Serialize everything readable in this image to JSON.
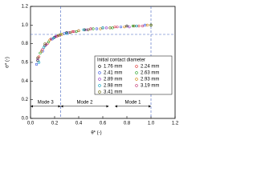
{
  "chart_data": {
    "type": "scatter",
    "x_label": "θ* (-)",
    "y_label": "σ* (-)",
    "xlim": [
      0,
      1.2
    ],
    "ylim": [
      0,
      1.2
    ],
    "xticks": [
      {
        "value": 0,
        "label": "0.0"
      },
      0.2,
      0.4,
      0.6,
      0.8,
      {
        "value": 1,
        "label": "1.0"
      },
      1.2
    ],
    "yticks": [
      {
        "value": 0,
        "label": "0.0"
      },
      0.2,
      0.4,
      0.6,
      0.8,
      {
        "value": 1,
        "label": "1.0"
      },
      1.2
    ],
    "legend_title": "Initial contact diameter",
    "legend_position": "lower right",
    "reference_lines": {
      "horizontal": [
        0.9
      ],
      "vertical": [
        0.25,
        1
      ]
    },
    "modes": [
      {
        "label": "Mode 3",
        "range": [
          0,
          0.25
        ]
      },
      {
        "label": "Mode 2",
        "range": [
          0.25,
          0.65
        ]
      },
      {
        "label": "Mode 1",
        "range": [
          0.7,
          1
        ]
      }
    ],
    "series": [
      {
        "name": "1.76 mm",
        "color": "#000000",
        "x": [
          0.06,
          0.12,
          0.2,
          0.3,
          0.45,
          0.6,
          0.8,
          1.0
        ],
        "values": [
          0.62,
          0.78,
          0.87,
          0.92,
          0.95,
          0.97,
          0.99,
          1.0
        ]
      },
      {
        "name": "2.24 mm",
        "color": "#e03030",
        "x": [
          0.07,
          0.14,
          0.22,
          0.35,
          0.5,
          0.7,
          0.9
        ],
        "values": [
          0.66,
          0.8,
          0.88,
          0.93,
          0.96,
          0.98,
          0.99
        ]
      },
      {
        "name": "2.41 mm",
        "color": "#3050e0",
        "x": [
          0.05,
          0.1,
          0.18,
          0.28,
          0.4,
          0.55,
          0.75,
          0.95
        ],
        "values": [
          0.58,
          0.72,
          0.85,
          0.91,
          0.94,
          0.96,
          0.98,
          1.0
        ]
      },
      {
        "name": "2.63 mm",
        "color": "#20a020",
        "x": [
          0.08,
          0.15,
          0.25,
          0.38,
          0.52,
          0.68,
          0.85,
          1.0
        ],
        "values": [
          0.7,
          0.82,
          0.9,
          0.93,
          0.96,
          0.97,
          0.99,
          1.0
        ]
      },
      {
        "name": "2.89 mm",
        "color": "#9030c0",
        "x": [
          0.06,
          0.13,
          0.21,
          0.32,
          0.47,
          0.63,
          0.82
        ],
        "values": [
          0.64,
          0.79,
          0.88,
          0.92,
          0.95,
          0.97,
          0.98
        ]
      },
      {
        "name": "2.93 mm",
        "color": "#d08000",
        "x": [
          0.09,
          0.16,
          0.26,
          0.4,
          0.58,
          0.78,
          0.97
        ],
        "values": [
          0.72,
          0.84,
          0.9,
          0.94,
          0.96,
          0.98,
          1.0
        ]
      },
      {
        "name": "2.98 mm",
        "color": "#00a0c0",
        "x": [
          0.07,
          0.11,
          0.19,
          0.3,
          0.44,
          0.6,
          0.88
        ],
        "values": [
          0.6,
          0.76,
          0.86,
          0.91,
          0.95,
          0.97,
          0.99
        ]
      },
      {
        "name": "3.19 mm",
        "color": "#c03070",
        "x": [
          0.1,
          0.17,
          0.24,
          0.36,
          0.5,
          0.72,
          0.93
        ],
        "values": [
          0.74,
          0.85,
          0.89,
          0.93,
          0.96,
          0.98,
          0.99
        ]
      },
      {
        "name": "3.41 mm",
        "color": "#606000",
        "x": [
          0.06,
          0.12,
          0.23,
          0.33,
          0.48,
          0.66,
          0.86,
          1.0
        ],
        "values": [
          0.65,
          0.8,
          0.89,
          0.92,
          0.95,
          0.97,
          0.99,
          1.0
        ]
      }
    ]
  }
}
